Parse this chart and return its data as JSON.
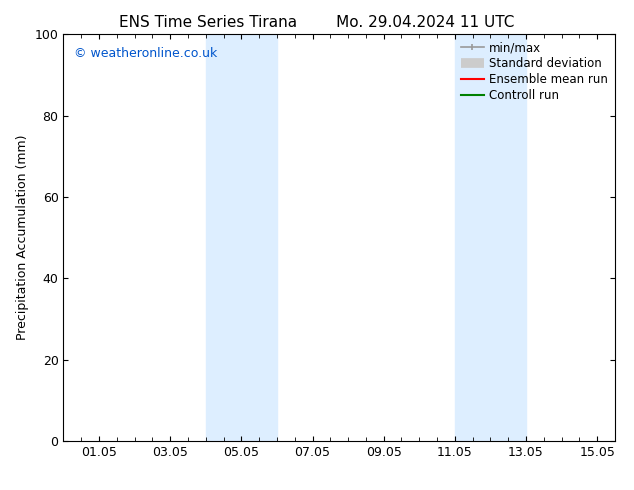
{
  "title_left": "ENS Time Series Tirana",
  "title_right": "Mo. 29.04.2024 11 UTC",
  "ylabel": "Precipitation Accumulation (mm)",
  "ylim": [
    0,
    100
  ],
  "yticks": [
    0,
    20,
    40,
    60,
    80,
    100
  ],
  "xtick_labels": [
    "01.05",
    "03.05",
    "05.05",
    "07.05",
    "09.05",
    "11.05",
    "13.05",
    "15.05"
  ],
  "xtick_positions": [
    1,
    3,
    5,
    7,
    9,
    11,
    13,
    15
  ],
  "xlim": [
    0.0,
    15.5
  ],
  "watermark": "© weatheronline.co.uk",
  "watermark_color": "#0055cc",
  "bg_color": "#ffffff",
  "plot_bg_color": "#ffffff",
  "shaded_regions": [
    {
      "xmin": 4.0,
      "xmax": 6.0,
      "color": "#ddeeff"
    },
    {
      "xmin": 11.0,
      "xmax": 13.0,
      "color": "#ddeeff"
    }
  ],
  "legend_items": [
    {
      "label": "min/max",
      "color": "#999999",
      "lw": 1.2,
      "style": "line_with_caps"
    },
    {
      "label": "Standard deviation",
      "color": "#cccccc",
      "lw": 7,
      "style": "thick"
    },
    {
      "label": "Ensemble mean run",
      "color": "#ff0000",
      "lw": 1.5,
      "style": "line"
    },
    {
      "label": "Controll run",
      "color": "#008000",
      "lw": 1.5,
      "style": "line"
    }
  ],
  "title_fontsize": 11,
  "axis_label_fontsize": 9,
  "tick_fontsize": 9,
  "legend_fontsize": 8.5,
  "watermark_fontsize": 9
}
